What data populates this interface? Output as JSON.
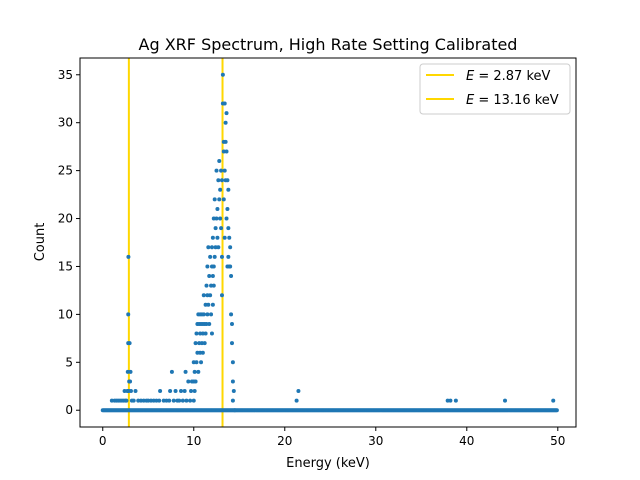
{
  "chart_data": {
    "type": "scatter",
    "title": "Ag XRF Spectrum, High Rate Setting Calibrated",
    "xlabel": "Energy (keV)",
    "ylabel": "Count",
    "xlim": [
      -2.5,
      52.0
    ],
    "ylim": [
      -1.75,
      36.75
    ],
    "xticks": [
      0,
      10,
      20,
      30,
      40,
      50
    ],
    "yticks": [
      0,
      5,
      10,
      15,
      20,
      25,
      30,
      35
    ],
    "grid": false,
    "legend_position": "top-right",
    "marker_color": "#1f77b4",
    "baseline": {
      "count": 0,
      "x_start": 0.0,
      "x_end": 49.9,
      "step": 0.1
    },
    "points": [
      [
        1.0,
        1
      ],
      [
        1.3,
        1
      ],
      [
        1.5,
        1
      ],
      [
        1.7,
        1
      ],
      [
        1.9,
        1
      ],
      [
        2.1,
        1
      ],
      [
        2.3,
        1
      ],
      [
        2.4,
        2
      ],
      [
        2.5,
        1
      ],
      [
        2.6,
        1
      ],
      [
        2.7,
        2
      ],
      [
        2.75,
        4
      ],
      [
        2.8,
        7
      ],
      [
        2.8,
        10
      ],
      [
        2.82,
        16
      ],
      [
        2.85,
        2
      ],
      [
        2.9,
        3
      ],
      [
        2.95,
        7
      ],
      [
        3.0,
        3
      ],
      [
        3.05,
        4
      ],
      [
        3.1,
        2
      ],
      [
        3.2,
        1
      ],
      [
        3.4,
        1
      ],
      [
        3.6,
        2
      ],
      [
        3.9,
        1
      ],
      [
        4.2,
        1
      ],
      [
        4.5,
        1
      ],
      [
        4.8,
        1
      ],
      [
        5.0,
        1
      ],
      [
        5.3,
        1
      ],
      [
        5.6,
        1
      ],
      [
        5.9,
        1
      ],
      [
        6.2,
        1
      ],
      [
        6.3,
        2
      ],
      [
        6.7,
        1
      ],
      [
        7.0,
        1
      ],
      [
        7.3,
        1
      ],
      [
        7.4,
        2
      ],
      [
        7.6,
        4
      ],
      [
        7.8,
        1
      ],
      [
        8.0,
        2
      ],
      [
        8.2,
        1
      ],
      [
        8.4,
        1
      ],
      [
        8.6,
        2
      ],
      [
        8.8,
        1
      ],
      [
        9.0,
        2
      ],
      [
        9.1,
        4
      ],
      [
        9.2,
        1
      ],
      [
        9.4,
        3
      ],
      [
        9.6,
        1
      ],
      [
        9.7,
        2
      ],
      [
        9.8,
        3
      ],
      [
        10.0,
        1
      ],
      [
        10.0,
        3
      ],
      [
        10.0,
        5
      ],
      [
        10.1,
        2
      ],
      [
        10.1,
        4
      ],
      [
        10.2,
        3
      ],
      [
        10.2,
        7
      ],
      [
        10.3,
        5
      ],
      [
        10.3,
        8
      ],
      [
        10.4,
        6
      ],
      [
        10.4,
        9
      ],
      [
        10.5,
        4
      ],
      [
        10.5,
        10
      ],
      [
        10.6,
        7
      ],
      [
        10.6,
        9
      ],
      [
        10.7,
        6
      ],
      [
        10.7,
        8
      ],
      [
        10.7,
        10
      ],
      [
        10.8,
        5
      ],
      [
        10.8,
        9
      ],
      [
        10.9,
        7
      ],
      [
        10.9,
        10
      ],
      [
        11.0,
        6
      ],
      [
        11.0,
        8
      ],
      [
        11.0,
        9
      ],
      [
        11.1,
        10
      ],
      [
        11.1,
        12
      ],
      [
        11.2,
        7
      ],
      [
        11.2,
        9
      ],
      [
        11.3,
        8
      ],
      [
        11.3,
        11
      ],
      [
        11.4,
        13
      ],
      [
        11.4,
        9
      ],
      [
        11.5,
        12
      ],
      [
        11.5,
        10
      ],
      [
        11.5,
        15
      ],
      [
        11.6,
        11
      ],
      [
        11.6,
        17
      ],
      [
        11.7,
        14
      ],
      [
        11.7,
        9
      ],
      [
        11.8,
        16
      ],
      [
        11.8,
        12
      ],
      [
        11.9,
        13
      ],
      [
        11.9,
        10
      ],
      [
        12.0,
        15
      ],
      [
        12.0,
        17
      ],
      [
        12.0,
        8
      ],
      [
        12.1,
        14
      ],
      [
        12.1,
        18
      ],
      [
        12.1,
        11
      ],
      [
        12.2,
        15
      ],
      [
        12.2,
        20
      ],
      [
        12.2,
        13
      ],
      [
        12.3,
        16
      ],
      [
        12.3,
        22
      ],
      [
        12.4,
        17
      ],
      [
        12.4,
        19
      ],
      [
        12.5,
        20
      ],
      [
        12.5,
        25
      ],
      [
        12.6,
        18
      ],
      [
        12.6,
        21
      ],
      [
        12.7,
        24
      ],
      [
        12.7,
        17
      ],
      [
        12.8,
        22
      ],
      [
        12.8,
        26
      ],
      [
        12.9,
        20
      ],
      [
        12.9,
        23
      ],
      [
        13.0,
        25
      ],
      [
        13.0,
        19
      ],
      [
        13.1,
        16
      ],
      [
        13.1,
        24
      ],
      [
        13.1,
        12
      ],
      [
        13.2,
        35
      ],
      [
        13.2,
        32
      ],
      [
        13.3,
        28
      ],
      [
        13.3,
        22
      ],
      [
        13.3,
        27
      ],
      [
        13.4,
        32
      ],
      [
        13.4,
        18
      ],
      [
        13.4,
        25
      ],
      [
        13.5,
        30
      ],
      [
        13.5,
        24
      ],
      [
        13.5,
        28
      ],
      [
        13.6,
        27
      ],
      [
        13.6,
        31
      ],
      [
        13.6,
        20
      ],
      [
        13.7,
        24
      ],
      [
        13.7,
        21
      ],
      [
        13.7,
        15
      ],
      [
        13.8,
        23
      ],
      [
        13.8,
        16
      ],
      [
        13.8,
        19
      ],
      [
        13.9,
        15
      ],
      [
        13.9,
        18
      ],
      [
        14.0,
        17
      ],
      [
        14.0,
        15
      ],
      [
        14.1,
        10
      ],
      [
        14.1,
        14
      ],
      [
        14.2,
        9
      ],
      [
        14.2,
        7
      ],
      [
        14.3,
        5
      ],
      [
        14.3,
        3
      ],
      [
        14.3,
        1
      ],
      [
        14.4,
        2
      ],
      [
        14.5,
        0
      ],
      [
        21.3,
        1
      ],
      [
        21.5,
        2
      ],
      [
        37.9,
        1
      ],
      [
        38.2,
        1
      ],
      [
        38.8,
        1
      ],
      [
        44.2,
        1
      ],
      [
        49.5,
        1
      ]
    ],
    "legend": [
      {
        "label_prefix": "E",
        "label_text": " = 2.87 keV",
        "x": 2.87,
        "color": "#ffd700"
      },
      {
        "label_prefix": "E",
        "label_text": " = 13.16 keV",
        "x": 13.16,
        "color": "#ffd700"
      }
    ]
  }
}
